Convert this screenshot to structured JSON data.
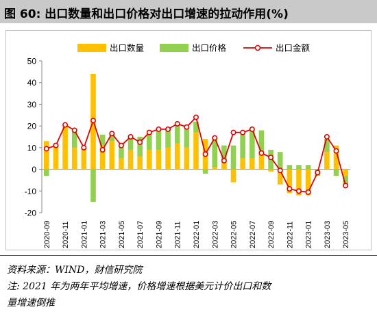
{
  "title": "图 60: 出口数量和出口价格对出口增速的拉动作用(%)",
  "source": "资料来源：WIND，财信研究院",
  "note_line1": "注: 2021 年为两年平均增速，价格增速根据美元计价出口和数",
  "note_line2": "量增速倒推",
  "colors": {
    "quantity": "#FFC000",
    "price": "#92D050",
    "amount": "#E00000"
  },
  "chart_data": {
    "type": "bar",
    "title": "",
    "ylim": [
      -20,
      50
    ],
    "yticks": [
      -20,
      -10,
      0,
      10,
      20,
      30,
      40,
      50
    ],
    "grid": false,
    "legend_position": "top",
    "x": [
      "2020-09",
      "2020-10",
      "2020-11",
      "2020-12",
      "2021-01",
      "2021-02",
      "2021-03",
      "2021-04",
      "2021-05",
      "2021-06",
      "2021-07",
      "2021-08",
      "2021-09",
      "2021-10",
      "2021-11",
      "2021-12",
      "2022-01",
      "2022-02",
      "2022-03",
      "2022-04",
      "2022-05",
      "2022-06",
      "2022-07",
      "2022-08",
      "2022-09",
      "2022-10",
      "2022-11",
      "2022-12",
      "2023-01",
      "2023-02",
      "2023-03",
      "2023-04",
      "2023-05"
    ],
    "xtick_labels": [
      "2020-09",
      "2020-11",
      "2021-01",
      "2021-03",
      "2021-05",
      "2021-07",
      "2021-09",
      "2021-11",
      "2022-01",
      "2022-03",
      "2022-05",
      "2022-07",
      "2022-09",
      "2022-11",
      "2023-01",
      "2023-03",
      "2023-05"
    ],
    "series": [
      {
        "name": "出口数量",
        "kind": "bar",
        "values": [
          13,
          11,
          20,
          10,
          10,
          44,
          11,
          13,
          5,
          9,
          6,
          9,
          9,
          10,
          12,
          10,
          17,
          14,
          1,
          4,
          -6,
          5,
          5,
          8,
          -1,
          -7,
          -11,
          -12,
          -12,
          0,
          8,
          11,
          -3
        ]
      },
      {
        "name": "出口价格",
        "kind": "bar",
        "values": [
          -3,
          1,
          0,
          8,
          0,
          -15,
          5,
          4,
          7,
          6,
          9,
          9,
          10,
          9,
          9,
          10,
          5,
          -2,
          14,
          7,
          11,
          12,
          13,
          10,
          9,
          8,
          2,
          2,
          2,
          -3,
          6,
          -3,
          -5
        ]
      },
      {
        "name": "出口金额",
        "kind": "line",
        "values": [
          9.5,
          11,
          20.5,
          18,
          10,
          22.5,
          9,
          16.5,
          11,
          15,
          12.5,
          17,
          18.5,
          18.5,
          21,
          19.5,
          24,
          7,
          14.5,
          4,
          17,
          17,
          18.5,
          7.5,
          5.5,
          -0.5,
          -9,
          -10,
          -10.5,
          -1.5,
          15,
          8.5,
          -7.5
        ]
      }
    ]
  }
}
